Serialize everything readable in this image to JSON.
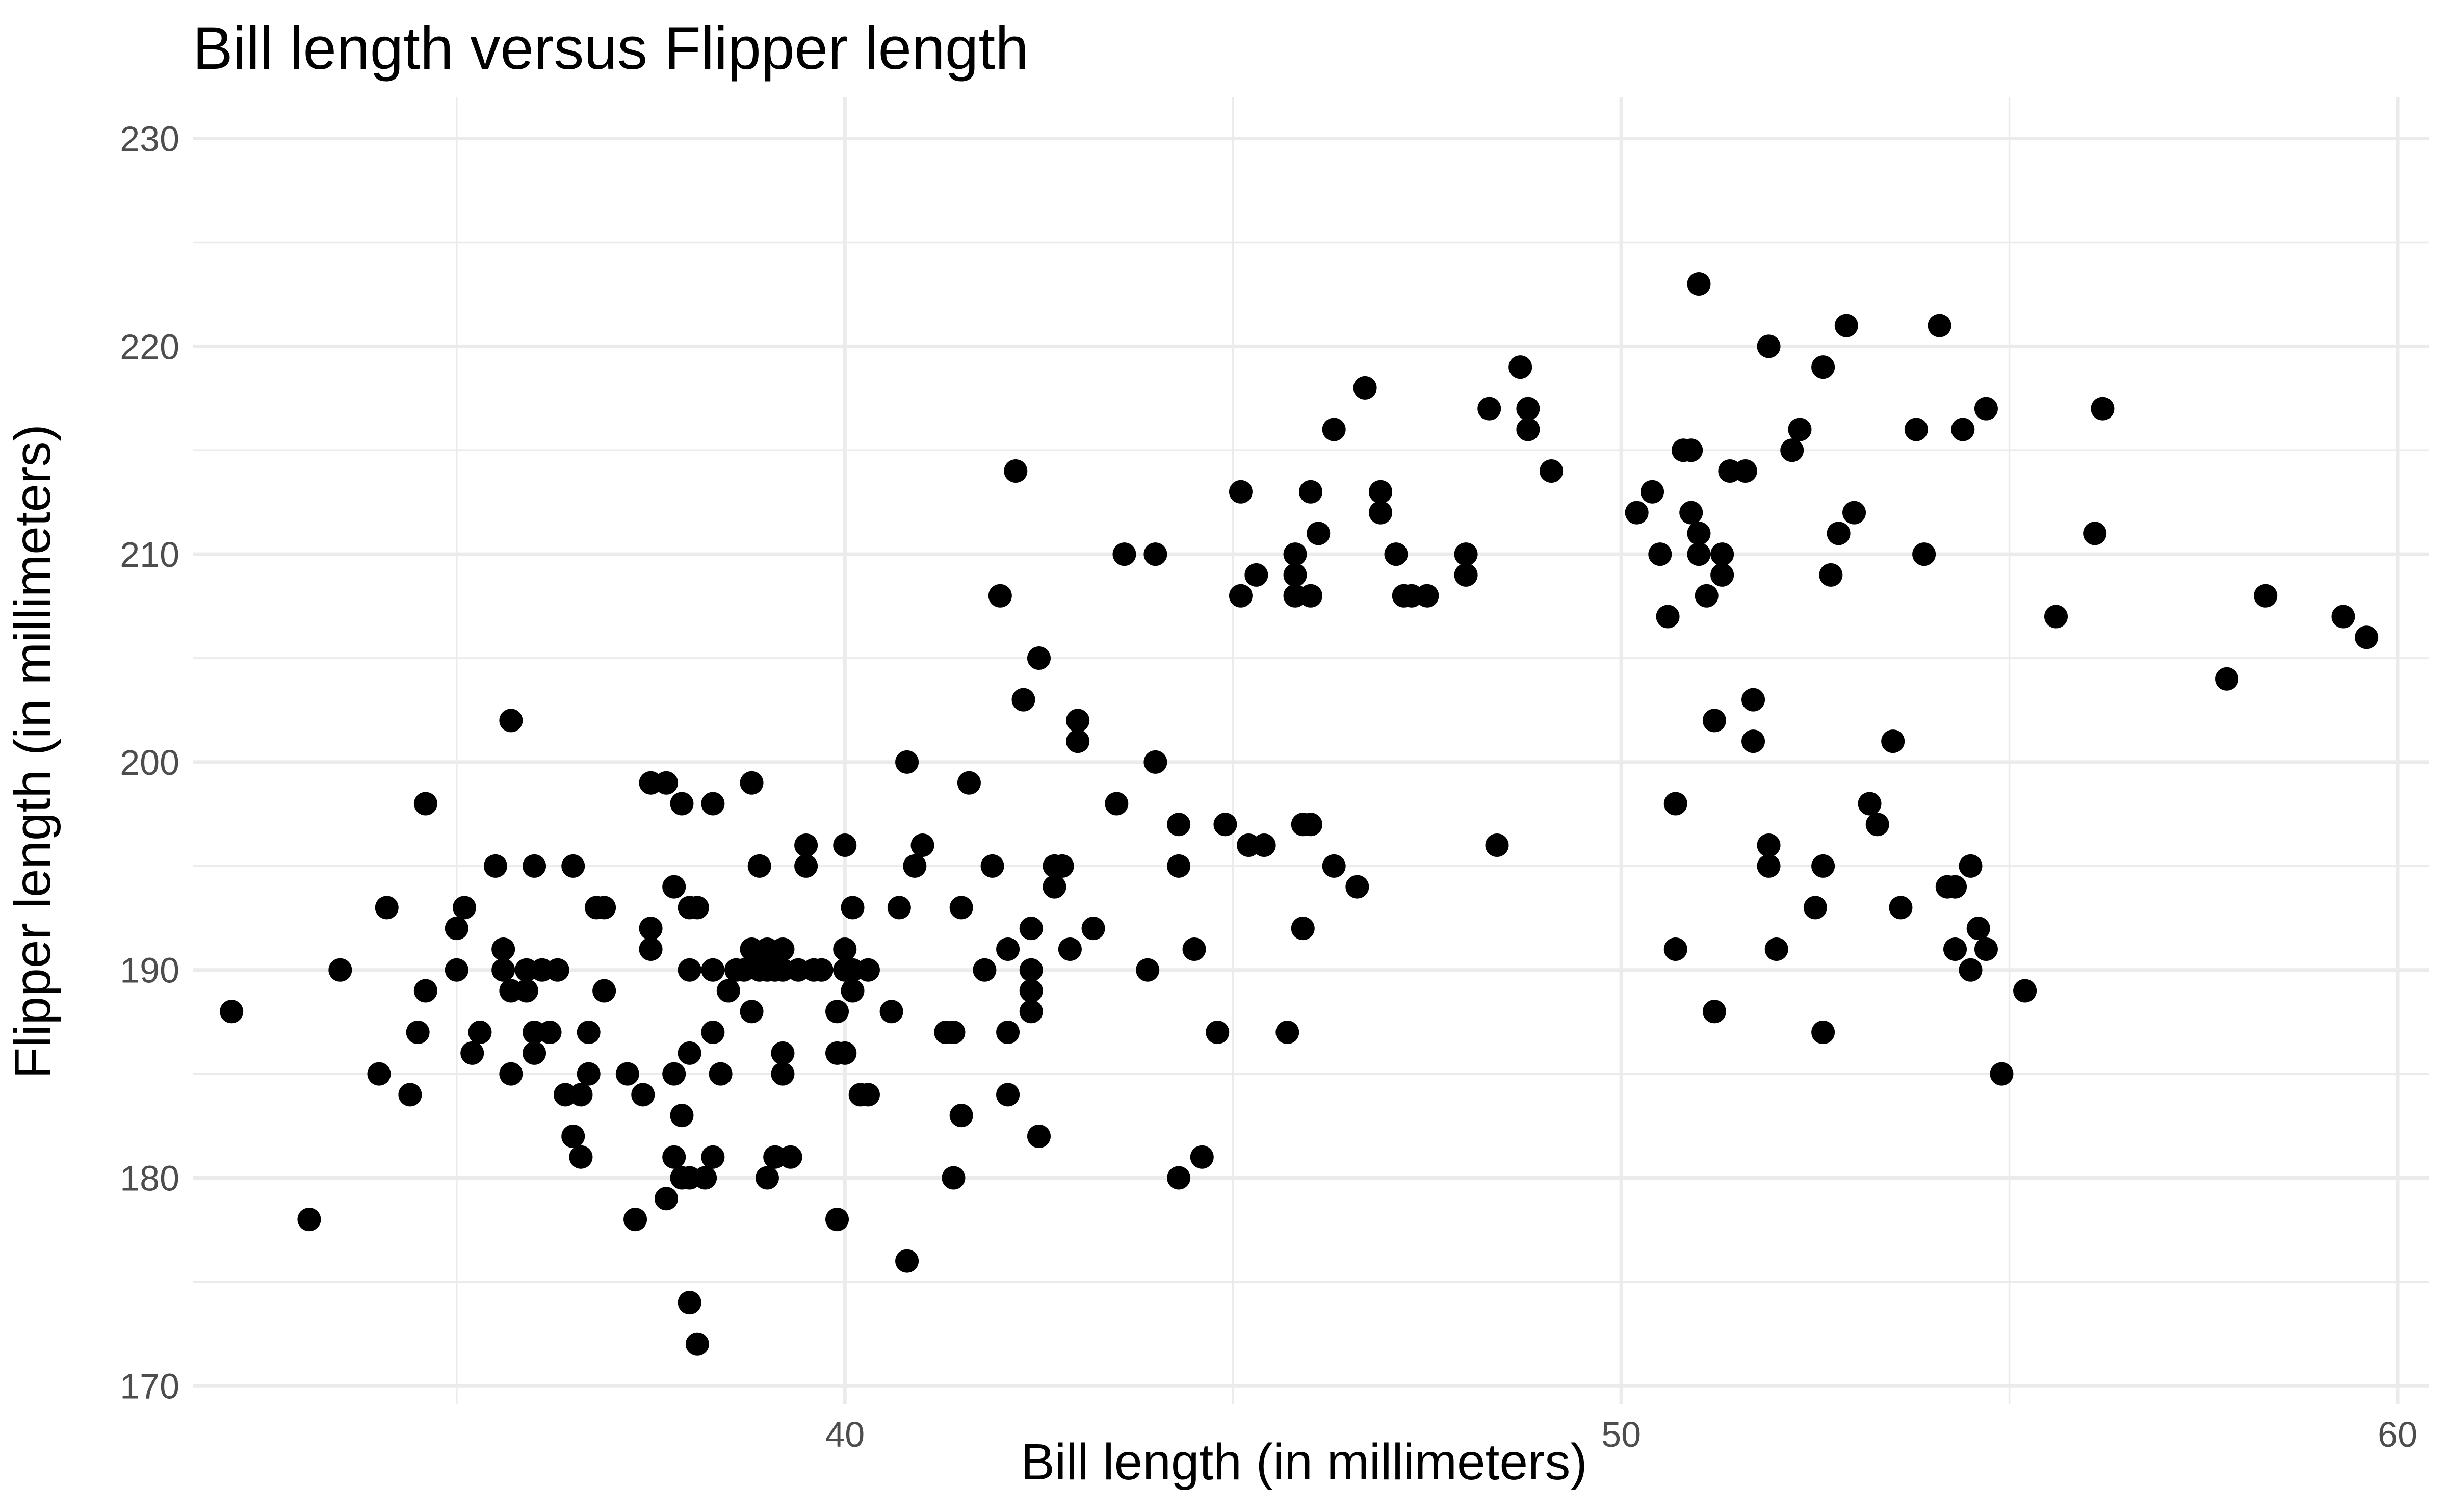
{
  "chart_data": {
    "type": "scatter",
    "title": "Bill length versus Flipper length",
    "xlabel": "Bill length (in millimeters)",
    "ylabel": "Flipper length (in millimeters)",
    "xlim": [
      31.6,
      60.4
    ],
    "ylim": [
      169.1,
      232.0
    ],
    "x_ticks": [
      40,
      50,
      60
    ],
    "x_minor_ticks": [
      35,
      45,
      55
    ],
    "y_ticks": [
      170,
      180,
      190,
      200,
      210,
      220,
      230
    ],
    "y_minor_ticks": [
      175,
      185,
      195,
      205,
      215,
      225
    ],
    "grid": true,
    "legend": "none",
    "point_color": "#000000",
    "points": [
      [
        32.1,
        188
      ],
      [
        33.1,
        178
      ],
      [
        33.5,
        190
      ],
      [
        34.0,
        185
      ],
      [
        34.1,
        193
      ],
      [
        34.4,
        184
      ],
      [
        34.5,
        187
      ],
      [
        34.6,
        189
      ],
      [
        34.6,
        198
      ],
      [
        35.0,
        190
      ],
      [
        35.0,
        192
      ],
      [
        35.1,
        193
      ],
      [
        35.2,
        186
      ],
      [
        35.3,
        187
      ],
      [
        35.5,
        195
      ],
      [
        35.6,
        190
      ],
      [
        35.6,
        191
      ],
      [
        35.7,
        185
      ],
      [
        35.7,
        189
      ],
      [
        35.7,
        202
      ],
      [
        35.9,
        189
      ],
      [
        35.9,
        190
      ],
      [
        36.0,
        186
      ],
      [
        36.0,
        187
      ],
      [
        36.0,
        195
      ],
      [
        36.1,
        190
      ],
      [
        36.2,
        187
      ],
      [
        36.3,
        190
      ],
      [
        36.4,
        184
      ],
      [
        36.5,
        182
      ],
      [
        36.5,
        195
      ],
      [
        36.6,
        181
      ],
      [
        36.6,
        184
      ],
      [
        36.7,
        185
      ],
      [
        36.7,
        187
      ],
      [
        36.8,
        193
      ],
      [
        36.9,
        189
      ],
      [
        36.9,
        193
      ],
      [
        37.2,
        185
      ],
      [
        37.3,
        178
      ],
      [
        37.4,
        184
      ],
      [
        37.5,
        191
      ],
      [
        37.5,
        192
      ],
      [
        37.5,
        199
      ],
      [
        37.7,
        179
      ],
      [
        37.7,
        199
      ],
      [
        37.8,
        181
      ],
      [
        37.8,
        185
      ],
      [
        37.8,
        194
      ],
      [
        37.9,
        180
      ],
      [
        37.9,
        183
      ],
      [
        37.9,
        198
      ],
      [
        38.0,
        174
      ],
      [
        38.0,
        180
      ],
      [
        38.0,
        186
      ],
      [
        38.0,
        190
      ],
      [
        38.0,
        193
      ],
      [
        38.1,
        172
      ],
      [
        38.1,
        193
      ],
      [
        38.2,
        180
      ],
      [
        38.3,
        181
      ],
      [
        38.3,
        187
      ],
      [
        38.3,
        190
      ],
      [
        38.3,
        198
      ],
      [
        38.4,
        185
      ],
      [
        38.5,
        189
      ],
      [
        38.6,
        190
      ],
      [
        38.7,
        190
      ],
      [
        38.8,
        188
      ],
      [
        38.8,
        191
      ],
      [
        38.8,
        199
      ],
      [
        38.9,
        190
      ],
      [
        38.9,
        195
      ],
      [
        39.0,
        180
      ],
      [
        39.0,
        190
      ],
      [
        39.0,
        191
      ],
      [
        39.1,
        181
      ],
      [
        39.1,
        190
      ],
      [
        39.2,
        185
      ],
      [
        39.2,
        186
      ],
      [
        39.2,
        190
      ],
      [
        39.2,
        191
      ],
      [
        39.3,
        181
      ],
      [
        39.4,
        190
      ],
      [
        39.5,
        195
      ],
      [
        39.5,
        196
      ],
      [
        39.6,
        190
      ],
      [
        39.7,
        190
      ],
      [
        39.9,
        178
      ],
      [
        39.9,
        186
      ],
      [
        39.9,
        188
      ],
      [
        40.0,
        186
      ],
      [
        40.0,
        190
      ],
      [
        40.0,
        191
      ],
      [
        40.0,
        196
      ],
      [
        40.1,
        189
      ],
      [
        40.1,
        190
      ],
      [
        40.1,
        193
      ],
      [
        40.2,
        184
      ],
      [
        40.3,
        184
      ],
      [
        40.3,
        190
      ],
      [
        40.6,
        188
      ],
      [
        40.7,
        193
      ],
      [
        40.8,
        176
      ],
      [
        40.8,
        200
      ],
      [
        40.9,
        195
      ],
      [
        41.0,
        196
      ],
      [
        41.3,
        187
      ],
      [
        41.4,
        180
      ],
      [
        41.4,
        187
      ],
      [
        41.5,
        183
      ],
      [
        41.5,
        193
      ],
      [
        41.6,
        199
      ],
      [
        41.8,
        190
      ],
      [
        41.9,
        195
      ],
      [
        42.0,
        208
      ],
      [
        42.1,
        184
      ],
      [
        42.1,
        187
      ],
      [
        42.1,
        191
      ],
      [
        42.2,
        214
      ],
      [
        42.3,
        203
      ],
      [
        42.4,
        188
      ],
      [
        42.4,
        189
      ],
      [
        42.4,
        190
      ],
      [
        42.4,
        192
      ],
      [
        42.5,
        182
      ],
      [
        42.5,
        205
      ],
      [
        42.7,
        194
      ],
      [
        42.7,
        195
      ],
      [
        42.8,
        195
      ],
      [
        42.9,
        191
      ],
      [
        43.0,
        201
      ],
      [
        43.0,
        202
      ],
      [
        43.2,
        192
      ],
      [
        43.5,
        198
      ],
      [
        43.6,
        210
      ],
      [
        43.9,
        190
      ],
      [
        44.0,
        200
      ],
      [
        44.0,
        210
      ],
      [
        44.3,
        180
      ],
      [
        44.3,
        195
      ],
      [
        44.3,
        197
      ],
      [
        44.5,
        191
      ],
      [
        44.6,
        181
      ],
      [
        44.8,
        187
      ],
      [
        44.9,
        197
      ],
      [
        45.1,
        208
      ],
      [
        45.1,
        213
      ],
      [
        45.2,
        196
      ],
      [
        45.3,
        209
      ],
      [
        45.4,
        196
      ],
      [
        45.7,
        187
      ],
      [
        45.8,
        208
      ],
      [
        45.8,
        209
      ],
      [
        45.8,
        210
      ],
      [
        45.9,
        192
      ],
      [
        45.9,
        197
      ],
      [
        46.0,
        197
      ],
      [
        46.0,
        208
      ],
      [
        46.0,
        213
      ],
      [
        46.1,
        211
      ],
      [
        46.3,
        195
      ],
      [
        46.3,
        216
      ],
      [
        46.6,
        194
      ],
      [
        46.7,
        218
      ],
      [
        46.9,
        212
      ],
      [
        46.9,
        213
      ],
      [
        47.1,
        210
      ],
      [
        47.2,
        208
      ],
      [
        47.3,
        208
      ],
      [
        47.5,
        208
      ],
      [
        48.0,
        209
      ],
      [
        48.0,
        210
      ],
      [
        48.3,
        217
      ],
      [
        48.4,
        196
      ],
      [
        48.7,
        219
      ],
      [
        48.8,
        216
      ],
      [
        48.8,
        217
      ],
      [
        49.1,
        214
      ],
      [
        50.2,
        212
      ],
      [
        50.4,
        213
      ],
      [
        50.5,
        210
      ],
      [
        50.6,
        207
      ],
      [
        50.7,
        191
      ],
      [
        50.7,
        198
      ],
      [
        50.8,
        215
      ],
      [
        50.9,
        212
      ],
      [
        50.9,
        215
      ],
      [
        51.0,
        210
      ],
      [
        51.0,
        211
      ],
      [
        51.0,
        223
      ],
      [
        51.1,
        208
      ],
      [
        51.2,
        188
      ],
      [
        51.2,
        202
      ],
      [
        51.3,
        209
      ],
      [
        51.3,
        210
      ],
      [
        51.4,
        214
      ],
      [
        51.6,
        214
      ],
      [
        51.7,
        203
      ],
      [
        51.7,
        201
      ],
      [
        51.9,
        196
      ],
      [
        51.9,
        195
      ],
      [
        51.9,
        220
      ],
      [
        52.0,
        191
      ],
      [
        52.2,
        215
      ],
      [
        52.3,
        216
      ],
      [
        52.5,
        193
      ],
      [
        52.6,
        187
      ],
      [
        52.6,
        219
      ],
      [
        52.6,
        195
      ],
      [
        52.7,
        209
      ],
      [
        52.8,
        211
      ],
      [
        52.9,
        221
      ],
      [
        53.0,
        212
      ],
      [
        53.2,
        198
      ],
      [
        53.3,
        197
      ],
      [
        53.5,
        201
      ],
      [
        53.6,
        193
      ],
      [
        53.8,
        216
      ],
      [
        53.9,
        210
      ],
      [
        54.1,
        221
      ],
      [
        54.2,
        194
      ],
      [
        54.3,
        191
      ],
      [
        54.3,
        194
      ],
      [
        54.4,
        216
      ],
      [
        54.5,
        195
      ],
      [
        54.5,
        190
      ],
      [
        54.6,
        192
      ],
      [
        54.7,
        191
      ],
      [
        54.7,
        217
      ],
      [
        54.9,
        185
      ],
      [
        55.2,
        189
      ],
      [
        55.6,
        207
      ],
      [
        56.1,
        211
      ],
      [
        56.2,
        217
      ],
      [
        57.8,
        204
      ],
      [
        58.3,
        208
      ],
      [
        59.3,
        207
      ],
      [
        59.6,
        206
      ]
    ]
  }
}
